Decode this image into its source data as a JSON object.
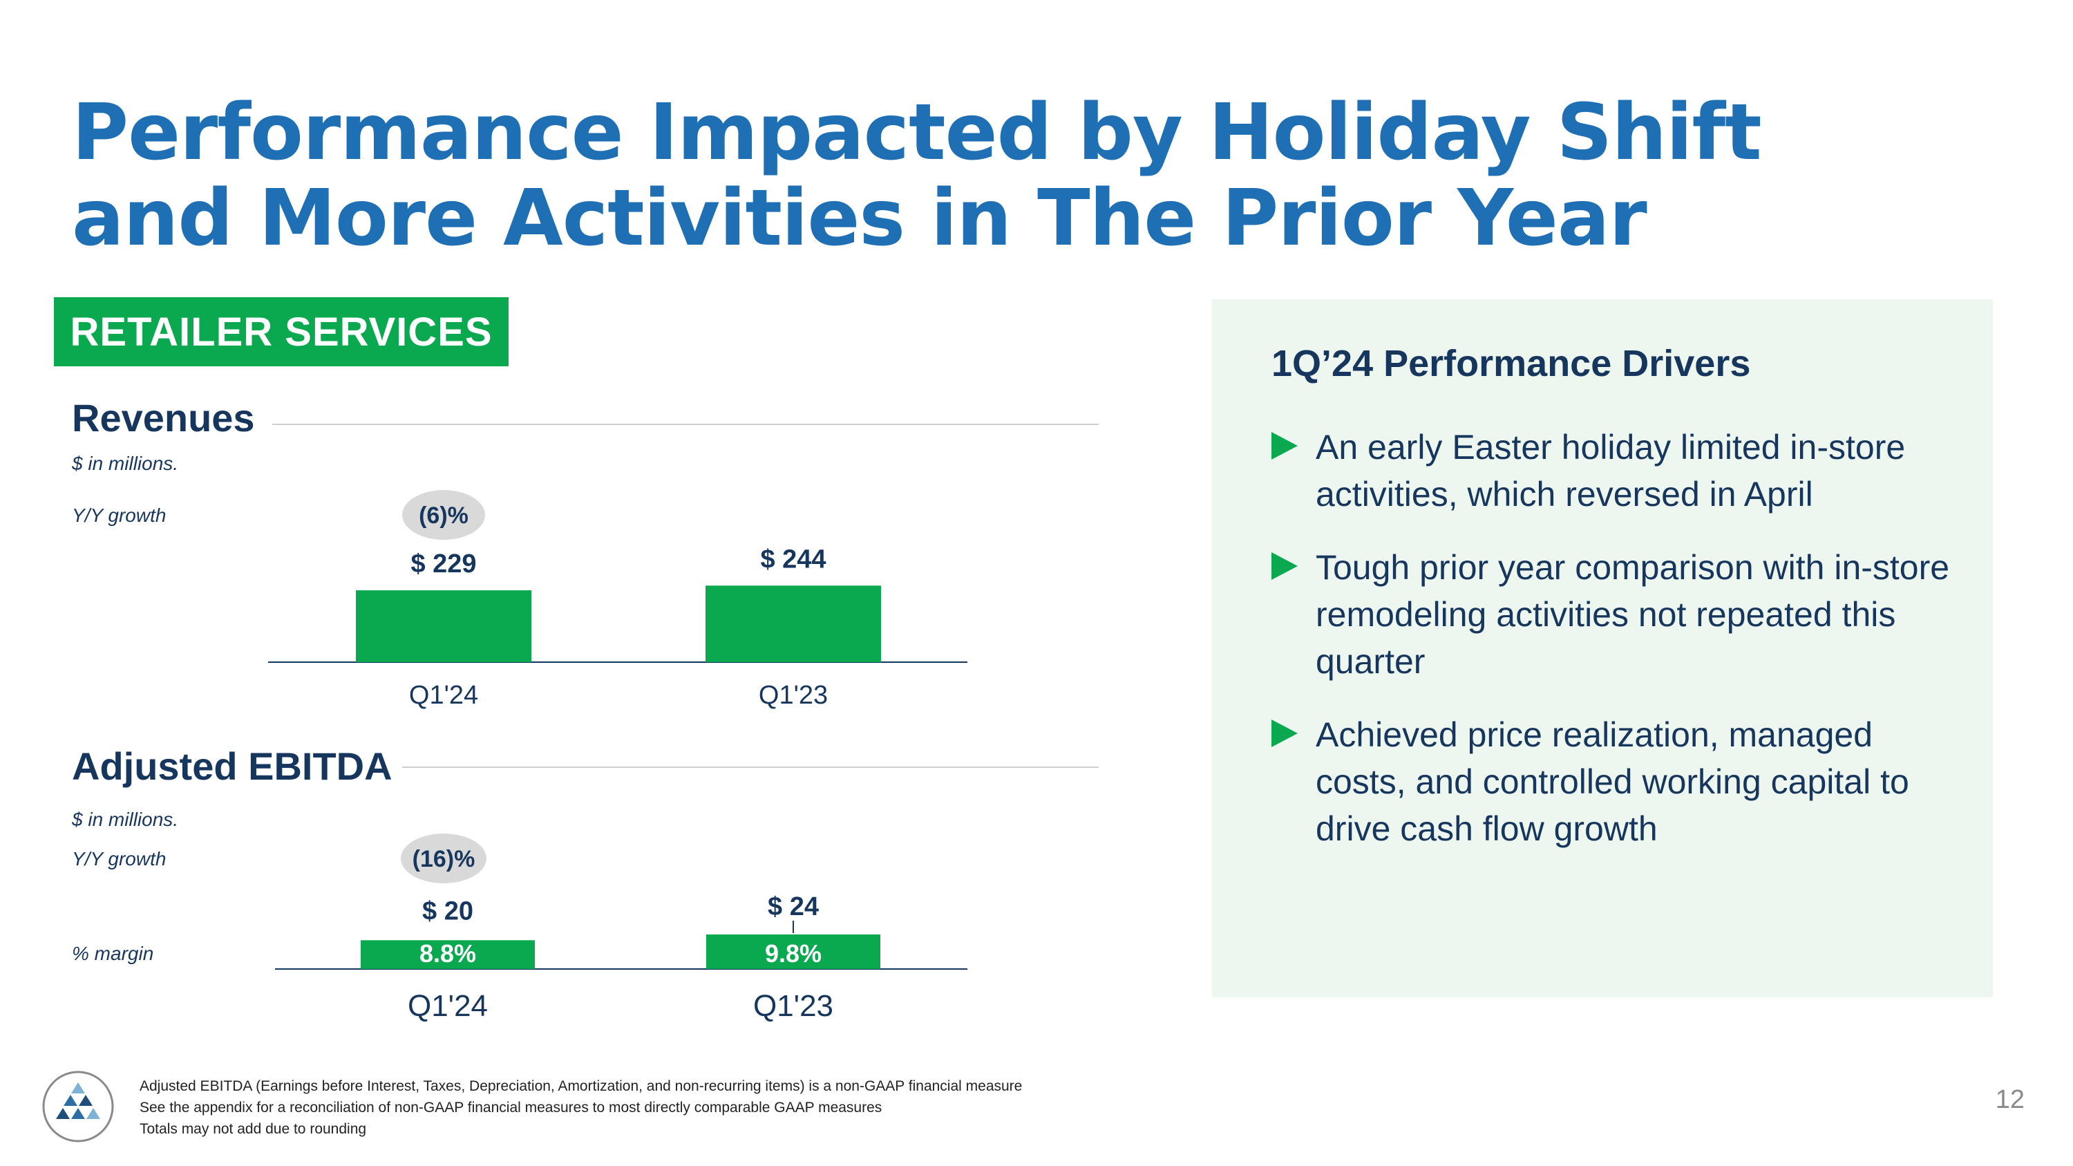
{
  "title": {
    "line1": "Performance Impacted by Holiday Shift",
    "line2": "and More Activities in The Prior Year"
  },
  "segment_badge": "RETAILER SERVICES",
  "revenues": {
    "title": "Revenues",
    "units": "$ in millions.",
    "growth_label": "Y/Y growth"
  },
  "ebitda": {
    "title": "Adjusted EBITDA",
    "units": "$ in millions.",
    "growth_label": "Y/Y growth",
    "margin_label": "% margin"
  },
  "chart_data": [
    {
      "type": "bar",
      "title": "Revenues",
      "units": "$ in millions.",
      "categories": [
        "Q1'24",
        "Q1'23"
      ],
      "values": [
        229,
        244
      ],
      "value_labels": [
        "$ 229",
        "$ 244"
      ],
      "yoy_growth": "(6)%",
      "ylim": [
        0,
        260
      ]
    },
    {
      "type": "bar",
      "title": "Adjusted EBITDA",
      "units": "$ in millions.",
      "categories": [
        "Q1'24",
        "Q1'23"
      ],
      "values": [
        20,
        24
      ],
      "value_labels": [
        "$ 20",
        "$ 24"
      ],
      "margins": [
        "8.8%",
        "9.8%"
      ],
      "yoy_growth": "(16)%",
      "ylim": [
        0,
        24
      ]
    }
  ],
  "drivers": {
    "title": "1Q’24 Performance Drivers",
    "items": [
      "An early Easter holiday limited in-store activities, which reversed in April",
      "Tough prior year comparison with in-store remodeling activities not repeated this quarter",
      "Achieved price realization, managed costs, and controlled working capital to drive cash flow growth"
    ]
  },
  "footnotes": [
    "Adjusted EBITDA (Earnings before Interest, Taxes, Depreciation, Amortization, and non-recurring items) is a non-GAAP financial measure",
    "See the appendix for a reconciliation of non-GAAP financial measures to most directly comparable GAAP measures",
    "Totals may not add due to rounding"
  ],
  "page_number": "12",
  "colors": {
    "title_blue": "#1f6fb5",
    "navy": "#17365d",
    "green": "#0aa84f",
    "panel_bg": "#edf7ef",
    "bubble": "#d9d9d9"
  }
}
